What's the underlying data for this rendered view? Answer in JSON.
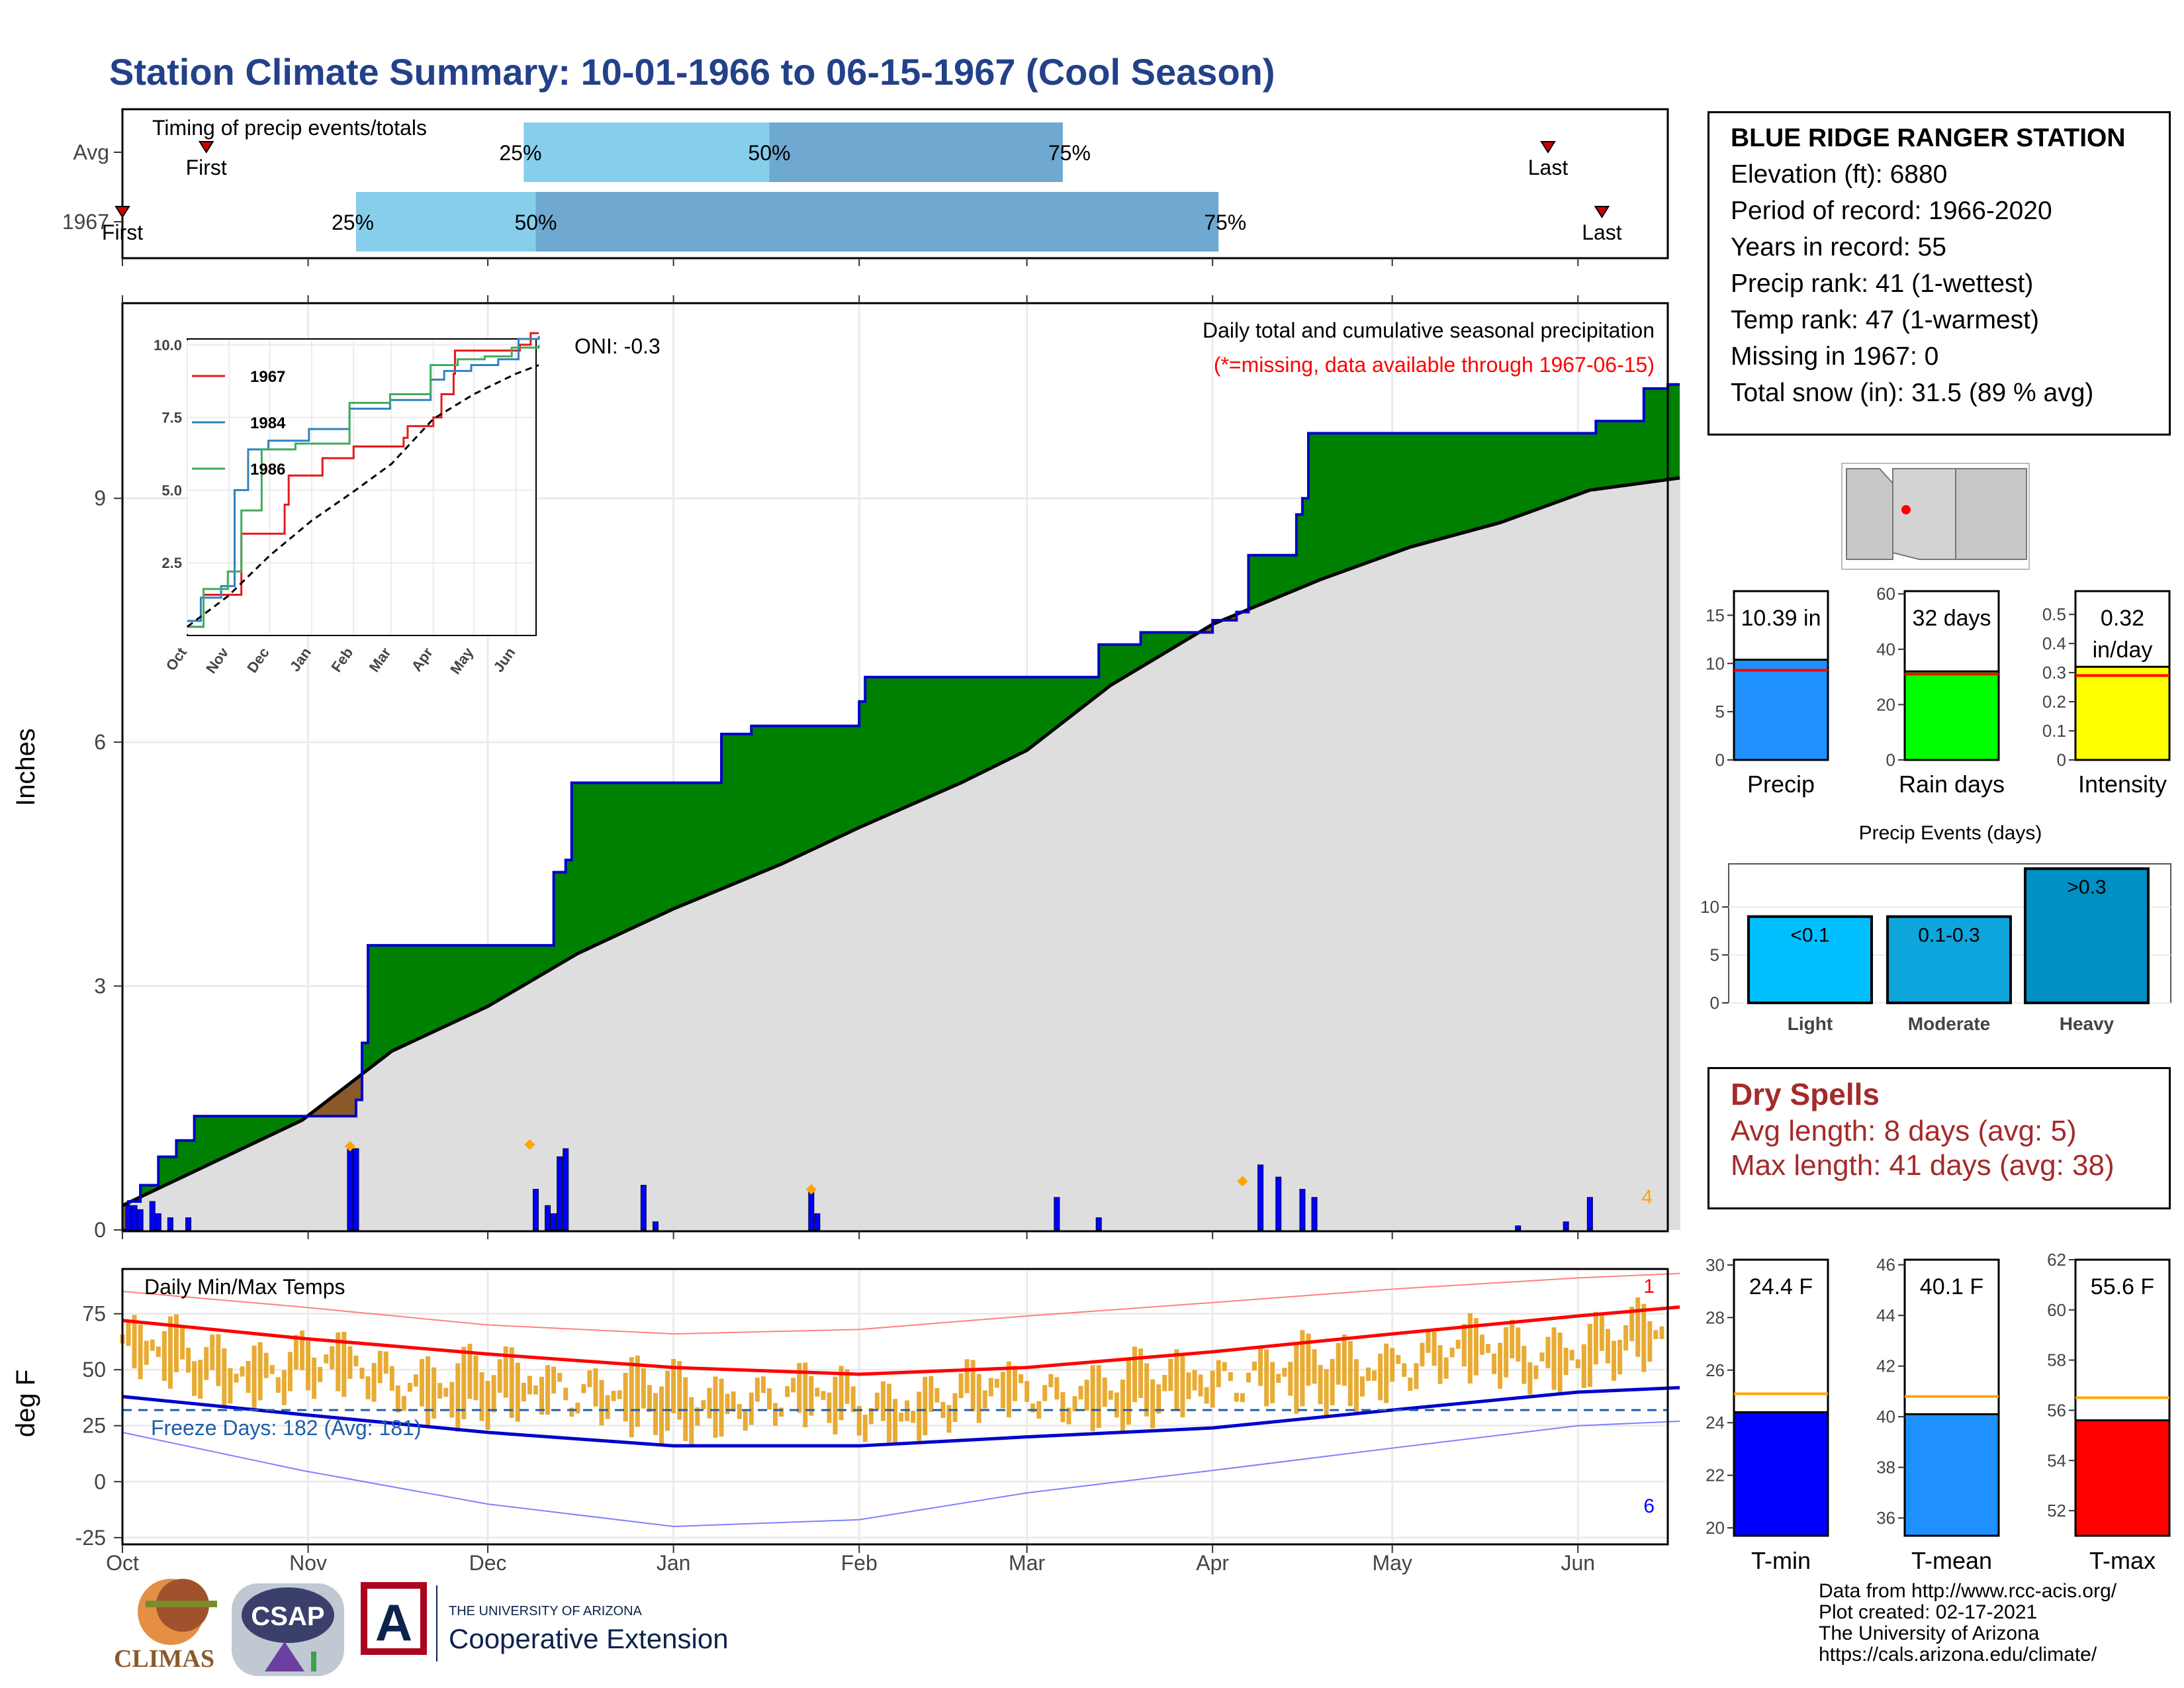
{
  "title": "Station Climate Summary: 10-01-1966 to 06-15-1967 (Cool Season)",
  "timing": {
    "label": "Timing of precip events/totals",
    "rows": [
      {
        "name": "Avg",
        "q25": "2001-12-07",
        "q50": "2002-01-17",
        "q75": "2002-03-07",
        "first": "2001-10-15",
        "last": "2002-05-27",
        "q25_label": "25%",
        "q50_label": "50%",
        "q75_label": "75%",
        "first_label": "First",
        "last_label": "Last"
      },
      {
        "name": "1967",
        "q25": "2001-11-09",
        "q50": "2001-12-09",
        "q75": "2002-04-02",
        "first": "2001-10-01",
        "last": "2002-06-05",
        "q25_label": "25%",
        "q50_label": "50%",
        "q75_label": "75%",
        "first_label": "First",
        "last_label": "Last"
      }
    ]
  },
  "station": {
    "name": "BLUE RIDGE RANGER STATION",
    "lines": [
      "Elevation (ft): 6880",
      "Period of record: 1966-2020",
      "Years in record: 55",
      "Precip rank: 41 (1-wettest)",
      "Temp rank: 47 (1-warmest)",
      "Missing in 1967: 0",
      "Total snow (in): 31.5 (89 % avg)"
    ]
  },
  "dry_spells": {
    "title": "Dry Spells",
    "avg": "Avg length: 8 days (avg: 5)",
    "max": "Max length: 41 days (avg: 38)"
  },
  "credits": [
    "Data from http://www.rcc-acis.org/",
    "Plot created: 02-17-2021",
    "The University of Arizona",
    "https://cals.arizona.edu/climate/"
  ],
  "logos": {
    "climas": "CLIMAS",
    "csap": "CSAP",
    "ua_small": "THE UNIVERSITY OF ARIZONA",
    "ua_big": "Cooperative Extension"
  },
  "chart_data": [
    {
      "type": "area",
      "id": "precip",
      "title": "Daily total and cumulative seasonal precipitation",
      "subtitle": "(*=missing, data available through 1967-06-15)",
      "ylabel": "Inches",
      "ylim": [
        0,
        11.4
      ],
      "yticks": [
        0,
        3,
        6,
        9
      ],
      "oni": "ONI: -0.3",
      "corner_label": "4",
      "months": [
        "Oct",
        "Nov",
        "Dec",
        "Jan",
        "Feb",
        "Mar",
        "Apr",
        "May",
        "Jun"
      ],
      "cumulative_steps": [
        [
          0,
          0
        ],
        [
          1,
          0.35
        ],
        [
          3,
          0.55
        ],
        [
          6,
          0.9
        ],
        [
          9,
          1.1
        ],
        [
          12,
          1.4
        ],
        [
          31,
          1.4
        ],
        [
          39,
          1.6
        ],
        [
          40,
          2.3
        ],
        [
          41,
          3.5
        ],
        [
          71,
          3.5
        ],
        [
          72,
          4.4
        ],
        [
          74,
          4.55
        ],
        [
          75,
          5.5
        ],
        [
          99,
          5.5
        ],
        [
          100,
          6.1
        ],
        [
          105,
          6.2
        ],
        [
          122,
          6.2
        ],
        [
          123,
          6.5
        ],
        [
          124,
          6.8
        ],
        [
          162,
          6.8
        ],
        [
          163,
          7.2
        ],
        [
          170,
          7.35
        ],
        [
          182,
          7.5
        ],
        [
          186,
          7.6
        ],
        [
          188,
          8.3
        ],
        [
          196,
          8.8
        ],
        [
          197,
          9.0
        ],
        [
          198,
          9.8
        ],
        [
          240,
          9.8
        ],
        [
          246,
          9.95
        ],
        [
          254,
          10.35
        ],
        [
          258,
          10.4
        ],
        [
          260,
          10.4
        ]
      ],
      "average_points": [
        [
          0,
          0.3
        ],
        [
          30,
          1.35
        ],
        [
          45,
          2.2
        ],
        [
          61,
          2.75
        ],
        [
          76,
          3.4
        ],
        [
          92,
          3.95
        ],
        [
          110,
          4.5
        ],
        [
          123,
          4.95
        ],
        [
          140,
          5.5
        ],
        [
          151,
          5.9
        ],
        [
          165,
          6.7
        ],
        [
          182,
          7.45
        ],
        [
          200,
          8.0
        ],
        [
          215,
          8.4
        ],
        [
          230,
          8.7
        ],
        [
          245,
          9.1
        ],
        [
          260,
          9.25
        ]
      ],
      "daily_bars": [
        [
          1,
          0.3
        ],
        [
          2,
          0.3
        ],
        [
          3,
          0.25
        ],
        [
          5,
          0.35
        ],
        [
          6,
          0.2
        ],
        [
          8,
          0.15
        ],
        [
          11,
          0.15
        ],
        [
          38,
          1.0
        ],
        [
          39,
          1.0
        ],
        [
          69,
          0.5
        ],
        [
          71,
          0.3
        ],
        [
          72,
          0.2
        ],
        [
          73,
          0.9
        ],
        [
          74,
          1.0
        ],
        [
          87,
          0.55
        ],
        [
          89,
          0.1
        ],
        [
          115,
          0.5
        ],
        [
          116,
          0.2
        ],
        [
          156,
          0.4
        ],
        [
          163,
          0.15
        ],
        [
          190,
          0.8
        ],
        [
          193,
          0.65
        ],
        [
          197,
          0.5
        ],
        [
          199,
          0.4
        ],
        [
          233,
          0.05
        ],
        [
          241,
          0.1
        ],
        [
          245,
          0.4
        ]
      ],
      "markers": [
        [
          38,
          1.03
        ],
        [
          68,
          1.05
        ],
        [
          115,
          0.5
        ],
        [
          187,
          0.6
        ]
      ],
      "inset": {
        "series": [
          {
            "name": "1967",
            "color": "#e31a1c",
            "points": [
              [
                0,
                0.3
              ],
              [
                12,
                1.4
              ],
              [
                30,
                1.4
              ],
              [
                40,
                3.5
              ],
              [
                70,
                3.5
              ],
              [
                72,
                4.5
              ],
              [
                75,
                5.5
              ],
              [
                99,
                5.5
              ],
              [
                100,
                6.1
              ],
              [
                123,
                6.5
              ],
              [
                160,
                6.8
              ],
              [
                163,
                7.2
              ],
              [
                182,
                7.5
              ],
              [
                188,
                8.3
              ],
              [
                197,
                9.0
              ],
              [
                198,
                9.8
              ],
              [
                240,
                9.8
              ],
              [
                246,
                10.0
              ],
              [
                254,
                10.4
              ],
              [
                260,
                10.4
              ]
            ]
          },
          {
            "name": "1984",
            "color": "#3182bd",
            "points": [
              [
                0,
                0.5
              ],
              [
                10,
                1.3
              ],
              [
                25,
                1.7
              ],
              [
                35,
                5.0
              ],
              [
                45,
                6.4
              ],
              [
                60,
                6.7
              ],
              [
                90,
                7.1
              ],
              [
                120,
                7.8
              ],
              [
                150,
                8.1
              ],
              [
                180,
                8.8
              ],
              [
                190,
                9.1
              ],
              [
                210,
                9.3
              ],
              [
                230,
                9.5
              ],
              [
                245,
                10.2
              ],
              [
                260,
                10.3
              ]
            ]
          },
          {
            "name": "1986",
            "color": "#41ab5d",
            "points": [
              [
                0,
                0.3
              ],
              [
                12,
                1.6
              ],
              [
                30,
                2.2
              ],
              [
                40,
                4.3
              ],
              [
                55,
                6.4
              ],
              [
                80,
                6.6
              ],
              [
                120,
                8.0
              ],
              [
                150,
                8.3
              ],
              [
                180,
                9.3
              ],
              [
                200,
                9.5
              ],
              [
                220,
                9.6
              ],
              [
                240,
                9.9
              ],
              [
                260,
                10.0
              ]
            ]
          },
          {
            "name": "average",
            "color": "#000000",
            "points": [
              [
                0,
                0.3
              ],
              [
                30,
                1.35
              ],
              [
                61,
                2.75
              ],
              [
                92,
                3.95
              ],
              [
                123,
                4.95
              ],
              [
                151,
                5.9
              ],
              [
                182,
                7.45
              ],
              [
                212,
                8.3
              ],
              [
                243,
                9.0
              ],
              [
                260,
                9.3
              ]
            ]
          }
        ],
        "ylim": [
          0,
          10.2
        ],
        "yticks": [
          2.5,
          5.0,
          7.5,
          10.0
        ],
        "months": [
          "Oct",
          "Nov",
          "Dec",
          "Jan",
          "Feb",
          "Mar",
          "Apr",
          "May",
          "Jun"
        ]
      }
    },
    {
      "type": "bar",
      "id": "temps",
      "title": "Daily Min/Max Temps",
      "ylabel": "deg F",
      "ylim": [
        -28,
        95
      ],
      "yticks": [
        -25,
        0,
        25,
        50,
        75
      ],
      "months": [
        "Oct",
        "Nov",
        "Dec",
        "Jan",
        "Feb",
        "Mar",
        "Apr",
        "May",
        "Jun"
      ],
      "freeze_label": "Freeze Days: 182 (Avg: 181)",
      "freeze_line": 32,
      "top_right_label": "1",
      "bottom_right_label": "6",
      "avg_max_points": [
        [
          0,
          72
        ],
        [
          30,
          64
        ],
        [
          61,
          57
        ],
        [
          92,
          51
        ],
        [
          123,
          48
        ],
        [
          151,
          51
        ],
        [
          182,
          58
        ],
        [
          212,
          66
        ],
        [
          243,
          74
        ],
        [
          260,
          78
        ]
      ],
      "avg_min_points": [
        [
          0,
          38
        ],
        [
          30,
          30
        ],
        [
          61,
          22
        ],
        [
          92,
          16
        ],
        [
          123,
          16
        ],
        [
          151,
          20
        ],
        [
          182,
          24
        ],
        [
          212,
          32
        ],
        [
          243,
          40
        ],
        [
          260,
          42
        ]
      ],
      "record_max_points": [
        [
          0,
          85
        ],
        [
          30,
          78
        ],
        [
          61,
          70
        ],
        [
          92,
          66
        ],
        [
          123,
          68
        ],
        [
          151,
          74
        ],
        [
          182,
          80
        ],
        [
          212,
          86
        ],
        [
          243,
          91
        ],
        [
          260,
          93
        ]
      ],
      "record_min_points": [
        [
          0,
          22
        ],
        [
          30,
          5
        ],
        [
          61,
          -10
        ],
        [
          92,
          -20
        ],
        [
          123,
          -17
        ],
        [
          151,
          -5
        ],
        [
          182,
          5
        ],
        [
          212,
          15
        ],
        [
          243,
          25
        ],
        [
          260,
          27
        ]
      ]
    },
    {
      "type": "bar",
      "id": "season-totals",
      "categories": [
        "Precip",
        "Rain days",
        "Intensity"
      ],
      "values": [
        10.39,
        32,
        0.32
      ],
      "averages": [
        9.3,
        31,
        0.29
      ],
      "value_labels": [
        "10.39 in",
        "32 days",
        "0.32 in/day"
      ],
      "ylims": [
        [
          0,
          17.5
        ],
        [
          0,
          61
        ],
        [
          0,
          0.58
        ]
      ],
      "yticks": [
        [
          0,
          5,
          10,
          15
        ],
        [
          0,
          20,
          40,
          60
        ],
        [
          0.0,
          0.1,
          0.2,
          0.3,
          0.4,
          0.5
        ]
      ],
      "colors": [
        "#1e90ff",
        "#00ff00",
        "#ffff00"
      ]
    },
    {
      "type": "bar",
      "id": "precip-events",
      "title": "Precip Events (days)",
      "categories": [
        "Light",
        "Moderate",
        "Heavy"
      ],
      "values": [
        9,
        9,
        14
      ],
      "labels": [
        "<0.1",
        "0.1-0.3",
        ">0.3"
      ],
      "ylim": [
        0,
        14.5
      ],
      "yticks": [
        0,
        5,
        10
      ],
      "colors": [
        "#00bfff",
        "#0ea4dc",
        "#0090c4"
      ]
    },
    {
      "type": "bar",
      "id": "temp-totals",
      "categories": [
        "T-min",
        "T-mean",
        "T-max"
      ],
      "values": [
        24.4,
        40.1,
        55.6
      ],
      "averages": [
        25.1,
        40.8,
        56.5
      ],
      "value_labels": [
        "24.4 F",
        "40.1 F",
        "55.6 F"
      ],
      "ylims": [
        [
          19.7,
          30.2
        ],
        [
          35.3,
          46.2
        ],
        [
          51.0,
          62.0
        ]
      ],
      "yticks": [
        [
          20,
          22,
          24,
          26,
          28,
          30
        ],
        [
          36,
          38,
          40,
          42,
          44,
          46
        ],
        [
          52,
          54,
          56,
          58,
          60,
          62
        ]
      ],
      "colors": [
        "#0000ff",
        "#1e90ff",
        "#ff0000"
      ]
    }
  ]
}
